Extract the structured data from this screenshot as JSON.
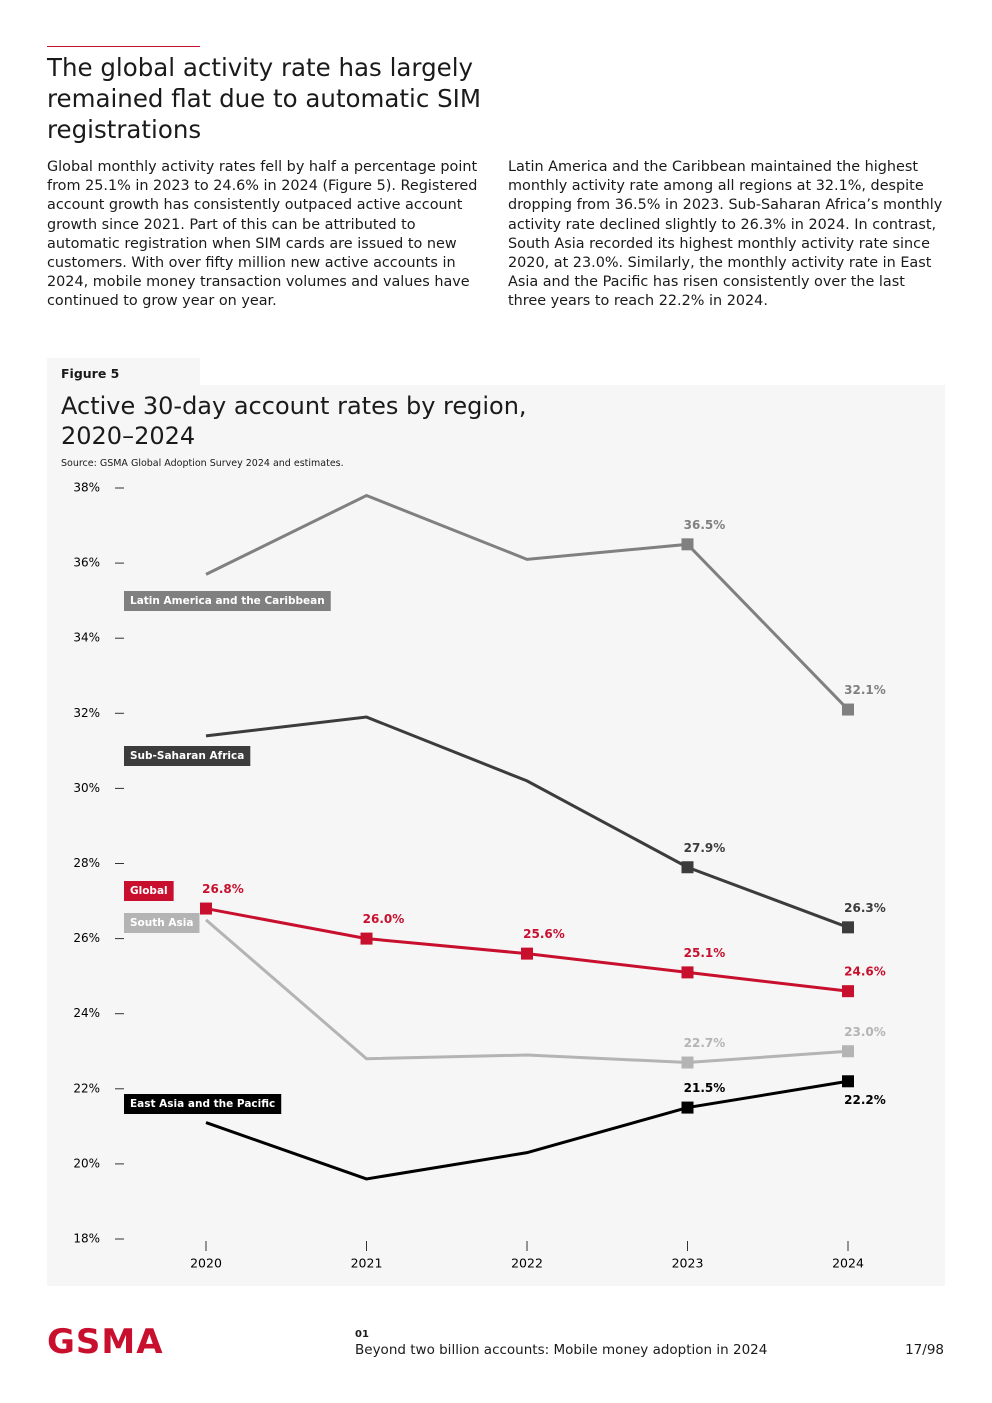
{
  "header": {
    "title": "The global activity rate has largely remained flat due to automatic SIM registrations"
  },
  "body": {
    "left": "Global monthly activity rates fell by half a percentage point from 25.1% in 2023 to 24.6% in 2024 (Figure 5). Registered account growth has consistently outpaced active account growth since 2021. Part of this can be attributed to automatic registration when SIM cards are issued to new customers. With over fifty million new active accounts in 2024, mobile money transaction volumes and values have continued to grow year on year.",
    "right": "Latin America and the Caribbean maintained the highest monthly activity rate among all regions at 32.1%, despite dropping from 36.5% in 2023. Sub-Saharan Africa’s monthly activity rate declined slightly to 26.3% in 2024. In contrast, South Asia recorded its highest monthly activity rate since 2020, at 23.0%. Similarly, the monthly activity rate in East Asia and the Pacific has risen consistently over the last three years to reach 22.2% in 2024."
  },
  "figure": {
    "label": "Figure 5"
  },
  "chart_data": {
    "type": "line",
    "title": "Active 30-day account rates by region, 2020–2024",
    "subtitle": "Source: GSMA Global Adoption Survey 2024 and estimates.",
    "categories": [
      "2020",
      "2021",
      "2022",
      "2023",
      "2024"
    ],
    "ylim": [
      18,
      38
    ],
    "yticks": [
      {
        "value": 18,
        "label": "18%"
      },
      {
        "value": 20,
        "label": "20%"
      },
      {
        "value": 22,
        "label": "22%"
      },
      {
        "value": 24,
        "label": "24%"
      },
      {
        "value": 26,
        "label": "26%"
      },
      {
        "value": 28,
        "label": "28%"
      },
      {
        "value": 30,
        "label": "30%"
      },
      {
        "value": 32,
        "label": "32%"
      },
      {
        "value": 34,
        "label": "34%"
      },
      {
        "value": 36,
        "label": "36%"
      },
      {
        "value": 38,
        "label": "38%"
      }
    ],
    "series": [
      {
        "name": "Latin America and the Caribbean",
        "color": "#808080",
        "values": [
          35.7,
          37.8,
          36.1,
          36.5,
          32.1
        ],
        "value_labels": [
          null,
          null,
          null,
          "36.5%",
          "32.1%"
        ]
      },
      {
        "name": "Sub-Saharan Africa",
        "color": "#3c3c3c",
        "values": [
          31.4,
          31.9,
          30.2,
          27.9,
          26.3
        ],
        "value_labels": [
          null,
          null,
          null,
          "27.9%",
          "26.3%"
        ]
      },
      {
        "name": "Global",
        "color": "#c8102e",
        "values": [
          26.8,
          26.0,
          25.6,
          25.1,
          24.6
        ],
        "value_labels": [
          "26.8%",
          "26.0%",
          "25.6%",
          "25.1%",
          "24.6%"
        ]
      },
      {
        "name": "South Asia",
        "color": "#b4b4b4",
        "values": [
          26.5,
          22.8,
          22.9,
          22.7,
          23.0
        ],
        "value_labels": [
          null,
          null,
          null,
          "22.7%",
          "23.0%"
        ]
      },
      {
        "name": "East Asia and the Pacific",
        "color": "#000000",
        "values": [
          21.1,
          19.6,
          20.3,
          21.5,
          22.2
        ],
        "value_labels": [
          null,
          null,
          null,
          "21.5%",
          "22.2%"
        ]
      }
    ]
  },
  "footer": {
    "logo": "GSMA",
    "section": "01",
    "title": "Beyond two billion accounts: Mobile money adoption in 2024",
    "page": "17/98"
  }
}
